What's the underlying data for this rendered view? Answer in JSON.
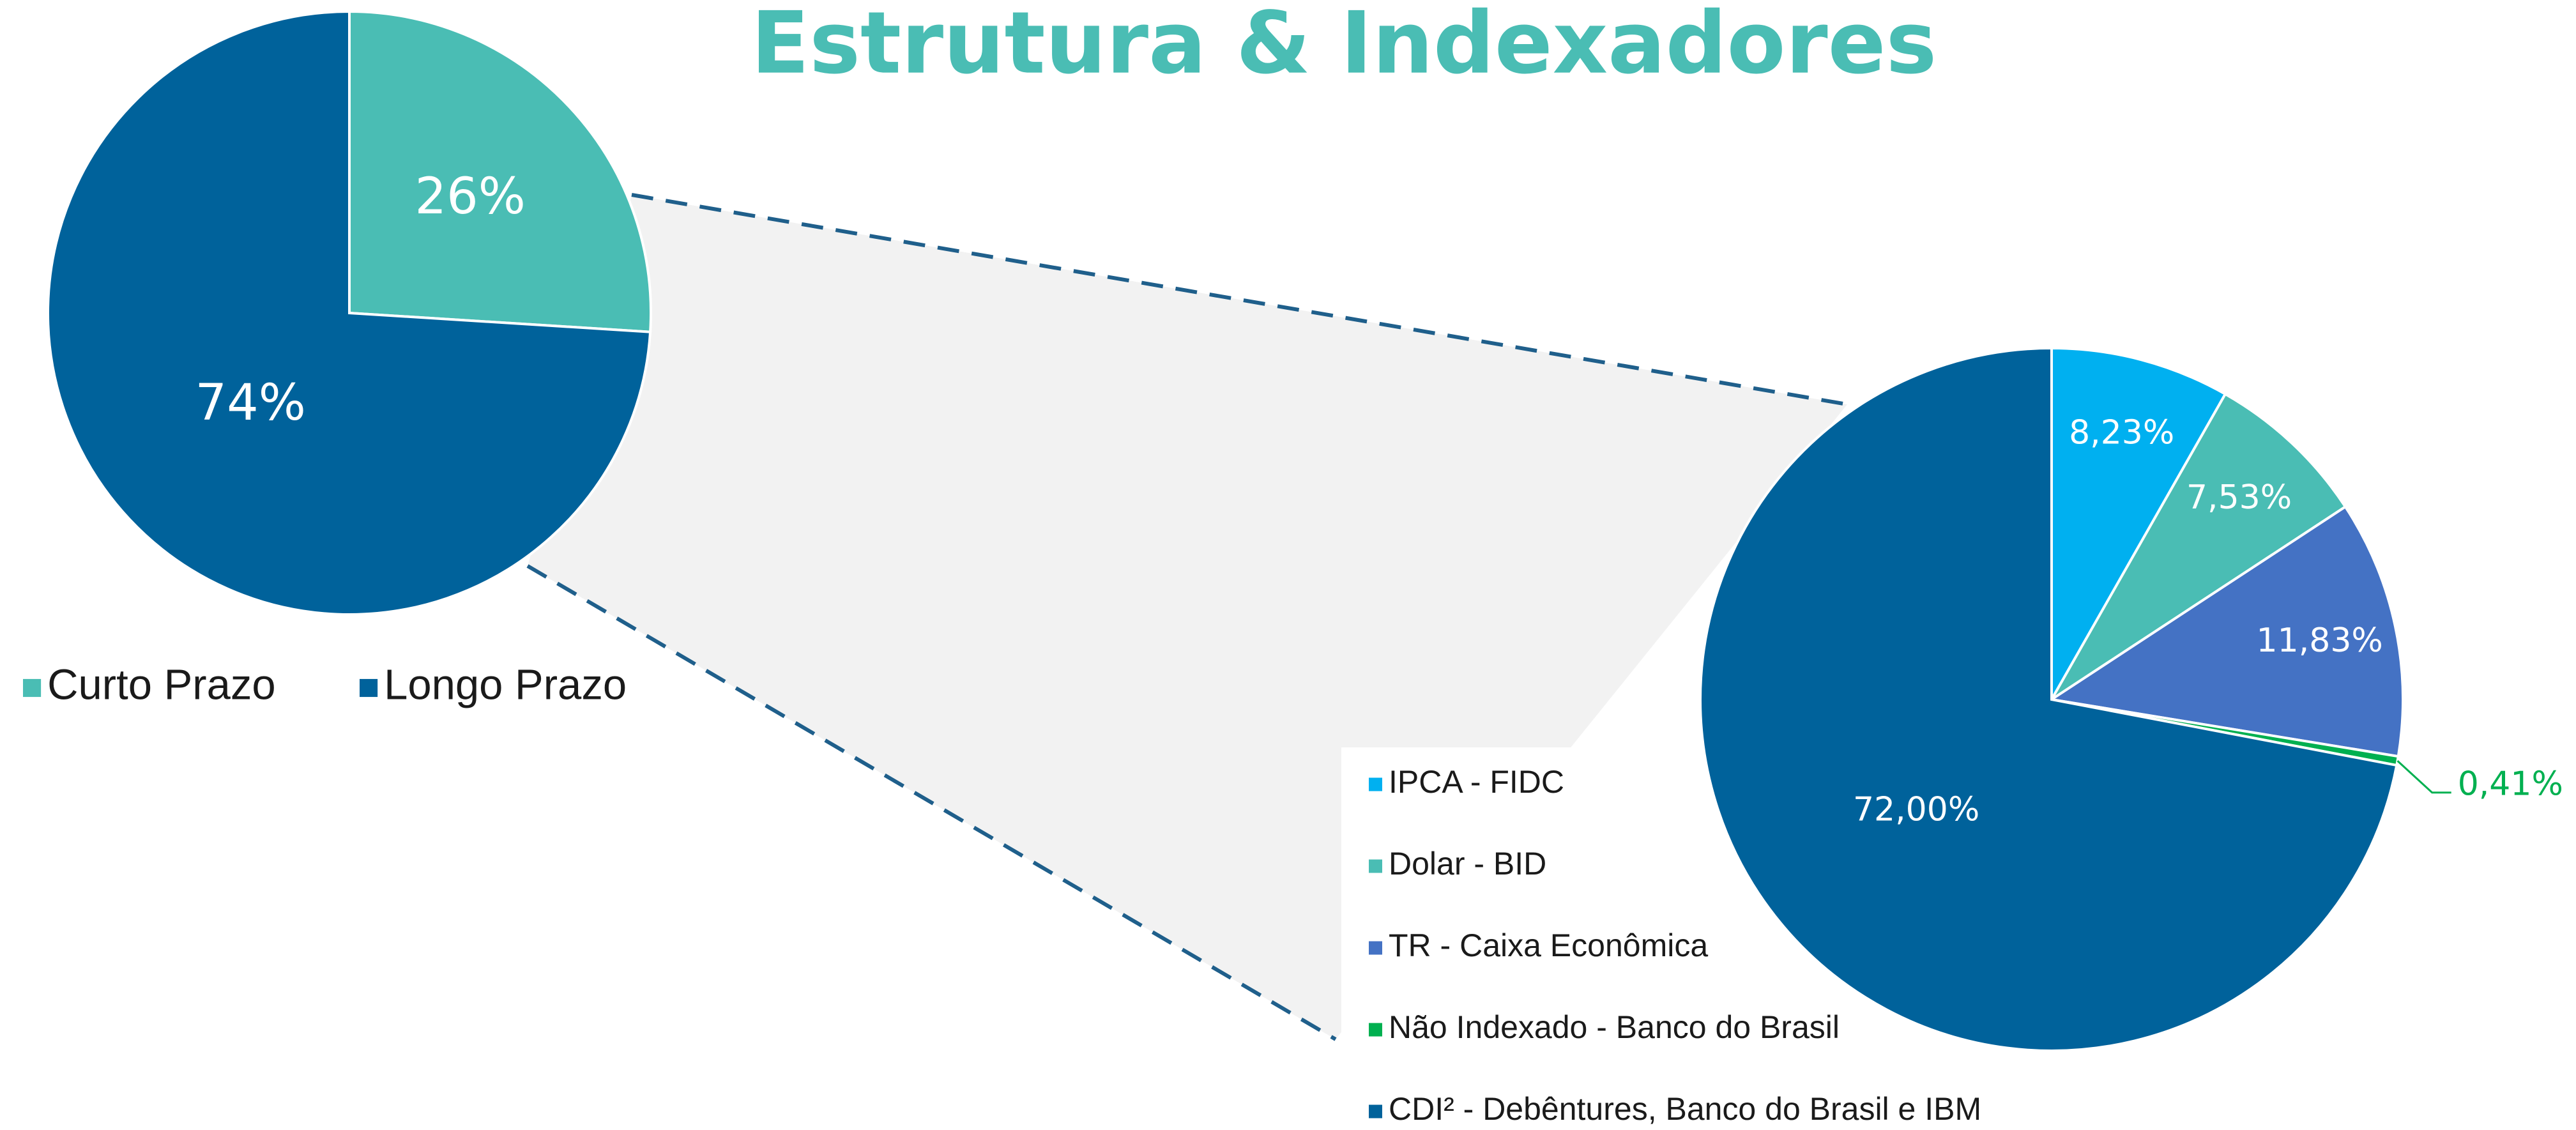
{
  "title": "Estrutura & Indexadores",
  "chart_data": [
    {
      "type": "pie",
      "categories": [
        "Curto Prazo",
        "Longo Prazo"
      ],
      "values": [
        26,
        74
      ],
      "value_labels": [
        "26%",
        "74%"
      ],
      "colors": [
        "#4ABDB4",
        "#00629B"
      ]
    },
    {
      "type": "pie",
      "categories": [
        "IPCA - FIDC",
        "Dolar - BID",
        "TR - Caixa Econômica",
        "Não Indexado - Banco do Brasil",
        "CDI² - Debêntures, Banco do Brasil e IBM"
      ],
      "values": [
        8.23,
        7.53,
        11.83,
        0.41,
        72.0
      ],
      "value_labels": [
        "8,23%",
        "7,53%",
        "11,83%",
        "0,41%",
        "72,00%"
      ],
      "colors": [
        "#00B0F0",
        "#4ABDB4",
        "#4472C4",
        "#00B050",
        "#00629B"
      ]
    }
  ]
}
